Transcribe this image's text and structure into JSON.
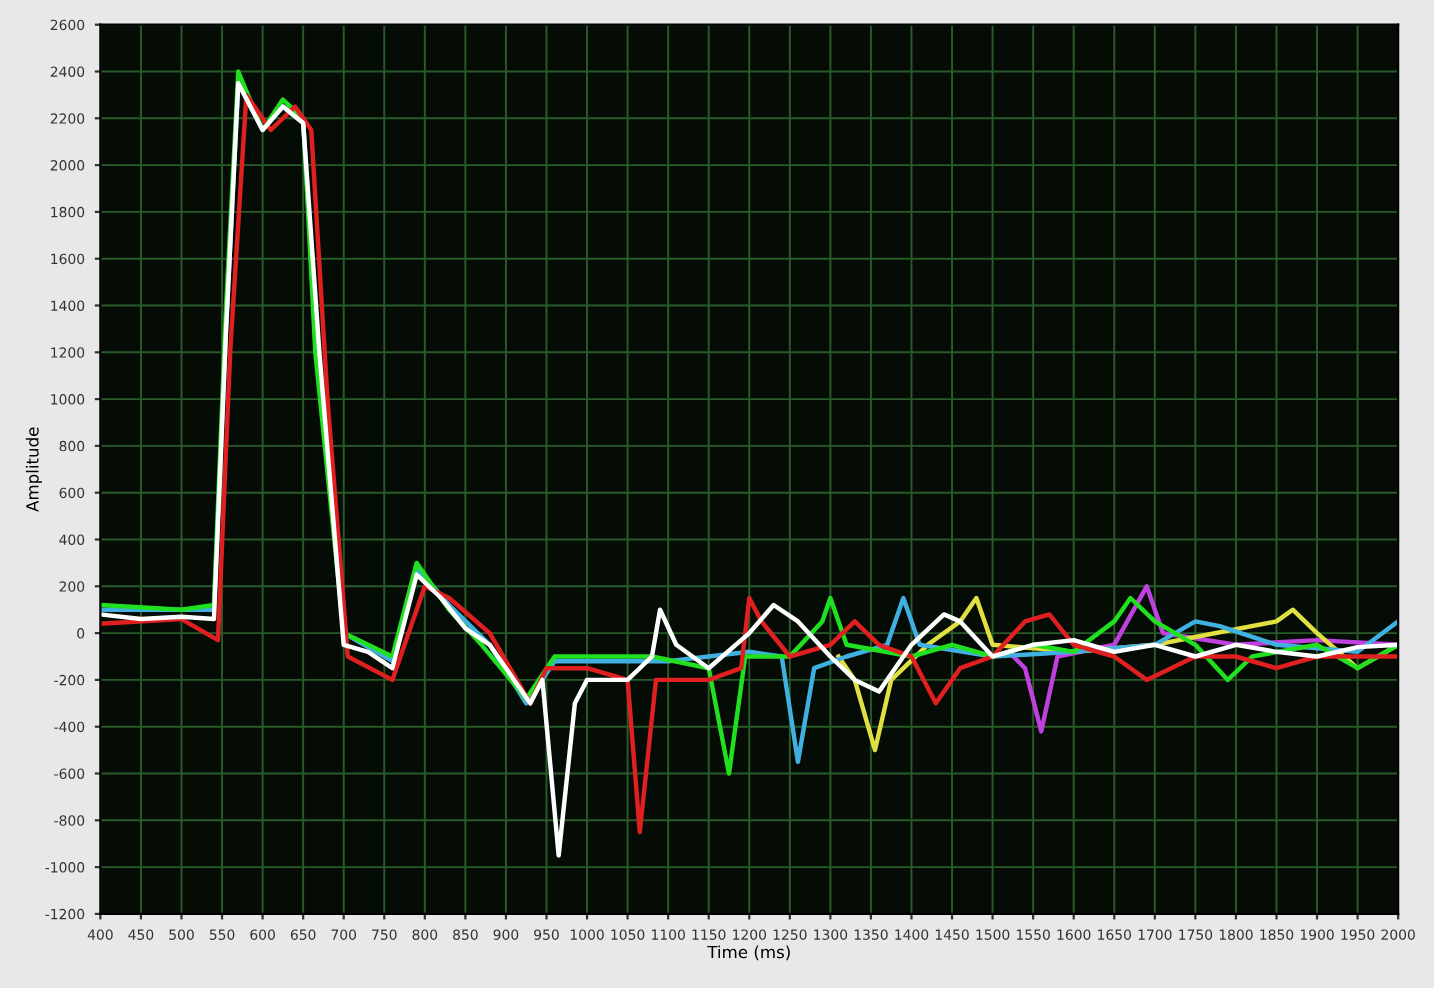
{
  "chart_data": {
    "type": "line",
    "xlabel": "Time (ms)",
    "ylabel": "Amplitude",
    "xlim": [
      400,
      2000
    ],
    "xticks": [
      400,
      450,
      500,
      550,
      600,
      650,
      700,
      750,
      800,
      850,
      900,
      950,
      1000,
      1050,
      1100,
      1150,
      1200,
      1250,
      1300,
      1350,
      1400,
      1450,
      1500,
      1550,
      1600,
      1650,
      1700,
      1750,
      1800,
      1850,
      1900,
      1950,
      2000
    ],
    "ylim": [
      -1200,
      2600
    ],
    "yticks": [
      -1200,
      -1000,
      -800,
      -600,
      -400,
      -200,
      0,
      200,
      400,
      600,
      800,
      1000,
      1200,
      1400,
      1600,
      1800,
      2000,
      2200,
      2400,
      2600
    ],
    "grid": true,
    "legend": false,
    "marker": "none",
    "line_style": "solid",
    "series": [
      {
        "color": "#c040e0",
        "x": [
          1520,
          1540,
          1560,
          1580,
          1650,
          1690,
          1710,
          1800,
          1900,
          2000
        ],
        "values": [
          -80,
          -150,
          -420,
          -100,
          -50,
          200,
          0,
          -50,
          -30,
          -50
        ]
      },
      {
        "color": "#e0e040",
        "x": [
          1310,
          1330,
          1355,
          1375,
          1420,
          1460,
          1480,
          1500,
          1600,
          1700,
          1850,
          1870,
          1900,
          1950,
          2000
        ],
        "values": [
          -100,
          -200,
          -500,
          -200,
          -50,
          50,
          150,
          -50,
          -80,
          -50,
          50,
          100,
          0,
          -150,
          -50
        ]
      },
      {
        "color": "#40b0e0",
        "x": [
          400,
          540,
          555,
          570,
          600,
          625,
          650,
          668,
          700,
          760,
          790,
          830,
          880,
          925,
          960,
          1100,
          1200,
          1240,
          1260,
          1280,
          1320,
          1370,
          1390,
          1410,
          1500,
          1600,
          1700,
          1750,
          1780,
          1850,
          1950,
          2000
        ],
        "values": [
          100,
          100,
          1300,
          2350,
          2150,
          2250,
          2180,
          1200,
          0,
          -120,
          280,
          120,
          -50,
          -300,
          -120,
          -120,
          -80,
          -100,
          -550,
          -150,
          -100,
          -50,
          150,
          -50,
          -100,
          -80,
          -50,
          50,
          30,
          -50,
          -80,
          50
        ]
      },
      {
        "color": "#20e020",
        "x": [
          400,
          500,
          540,
          555,
          570,
          600,
          625,
          650,
          665,
          700,
          760,
          790,
          830,
          870,
          925,
          960,
          1000,
          1080,
          1150,
          1175,
          1195,
          1250,
          1290,
          1300,
          1320,
          1400,
          1450,
          1500,
          1550,
          1600,
          1650,
          1670,
          1700,
          1750,
          1790,
          1820,
          1900,
          1950,
          2000
        ],
        "values": [
          120,
          100,
          120,
          1400,
          2400,
          2150,
          2280,
          2200,
          1200,
          0,
          -100,
          300,
          100,
          -50,
          -280,
          -100,
          -100,
          -100,
          -150,
          -600,
          -100,
          -100,
          50,
          150,
          -50,
          -100,
          -50,
          -100,
          -50,
          -80,
          50,
          150,
          50,
          -50,
          -200,
          -100,
          -50,
          -150,
          -50
        ]
      },
      {
        "color": "#e02020",
        "x": [
          400,
          500,
          545,
          560,
          580,
          610,
          640,
          660,
          680,
          705,
          760,
          800,
          830,
          880,
          930,
          950,
          1000,
          1050,
          1065,
          1085,
          1150,
          1190,
          1200,
          1215,
          1250,
          1300,
          1330,
          1360,
          1400,
          1430,
          1460,
          1500,
          1540,
          1570,
          1600,
          1650,
          1690,
          1750,
          1800,
          1850,
          1900,
          2000
        ],
        "values": [
          40,
          60,
          -30,
          1200,
          2300,
          2150,
          2250,
          2150,
          1000,
          -100,
          -200,
          200,
          150,
          0,
          -300,
          -150,
          -150,
          -200,
          -850,
          -200,
          -200,
          -150,
          150,
          50,
          -100,
          -50,
          50,
          -50,
          -100,
          -300,
          -150,
          -100,
          50,
          80,
          -50,
          -100,
          -200,
          -100,
          -100,
          -150,
          -100,
          -100
        ]
      },
      {
        "color": "#ffffff",
        "x": [
          400,
          450,
          500,
          540,
          555,
          570,
          600,
          625,
          650,
          670,
          700,
          730,
          760,
          790,
          820,
          850,
          880,
          910,
          930,
          945,
          965,
          985,
          1000,
          1050,
          1080,
          1090,
          1110,
          1150,
          1200,
          1230,
          1260,
          1300,
          1330,
          1360,
          1400,
          1440,
          1460,
          1500,
          1550,
          1600,
          1650,
          1700,
          1750,
          1800,
          1850,
          1900,
          1950,
          2000
        ],
        "values": [
          80,
          60,
          70,
          60,
          1300,
          2350,
          2150,
          2250,
          2180,
          1200,
          -50,
          -80,
          -150,
          250,
          150,
          20,
          -50,
          -200,
          -300,
          -200,
          -950,
          -300,
          -200,
          -200,
          -100,
          100,
          -50,
          -150,
          0,
          120,
          50,
          -100,
          -200,
          -250,
          -50,
          80,
          50,
          -100,
          -50,
          -30,
          -80,
          -50,
          -100,
          -50,
          -80,
          -100,
          -60,
          -50
        ]
      }
    ]
  }
}
